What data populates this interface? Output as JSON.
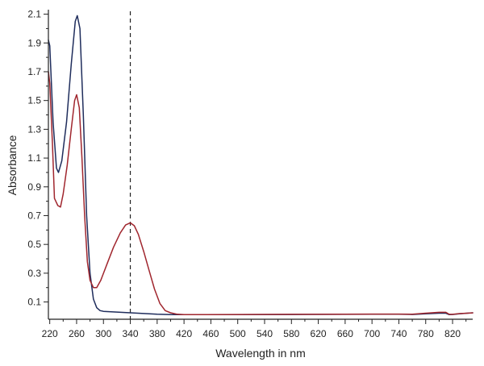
{
  "chart_data": {
    "type": "line",
    "title": "",
    "xlabel": "Wavelength in nm",
    "ylabel": "Absorbance",
    "xlim": [
      218,
      850
    ],
    "ylim": [
      -0.02,
      2.12
    ],
    "x_ticks": [
      220,
      260,
      300,
      340,
      380,
      420,
      460,
      500,
      540,
      580,
      620,
      660,
      700,
      740,
      780,
      820
    ],
    "y_ticks": [
      0.1,
      0.3,
      0.5,
      0.7,
      0.9,
      1.1,
      1.3,
      1.5,
      1.7,
      1.9,
      2.1
    ],
    "grid": false,
    "legend": "none",
    "vertical_marker_x": 340,
    "series": [
      {
        "color": "#1f2d5c",
        "points": [
          [
            218,
            1.92
          ],
          [
            220,
            1.88
          ],
          [
            225,
            1.35
          ],
          [
            230,
            1.03
          ],
          [
            233,
            1.0
          ],
          [
            238,
            1.08
          ],
          [
            245,
            1.35
          ],
          [
            252,
            1.75
          ],
          [
            258,
            2.05
          ],
          [
            261,
            2.09
          ],
          [
            265,
            2.0
          ],
          [
            270,
            1.4
          ],
          [
            275,
            0.7
          ],
          [
            280,
            0.3
          ],
          [
            285,
            0.12
          ],
          [
            290,
            0.06
          ],
          [
            295,
            0.04
          ],
          [
            300,
            0.035
          ],
          [
            320,
            0.03
          ],
          [
            340,
            0.025
          ],
          [
            360,
            0.02
          ],
          [
            380,
            0.015
          ],
          [
            400,
            0.012
          ],
          [
            420,
            0.012
          ],
          [
            500,
            0.012
          ],
          [
            580,
            0.013
          ],
          [
            660,
            0.014
          ],
          [
            700,
            0.015
          ],
          [
            740,
            0.015
          ],
          [
            760,
            0.013
          ],
          [
            780,
            0.018
          ],
          [
            800,
            0.022
          ],
          [
            810,
            0.022
          ],
          [
            815,
            0.012
          ],
          [
            820,
            0.013
          ],
          [
            830,
            0.018
          ],
          [
            850,
            0.025
          ]
        ]
      },
      {
        "color": "#a0262e",
        "points": [
          [
            218,
            1.7
          ],
          [
            220,
            1.62
          ],
          [
            224,
            1.2
          ],
          [
            227,
            0.82
          ],
          [
            232,
            0.77
          ],
          [
            236,
            0.76
          ],
          [
            240,
            0.85
          ],
          [
            246,
            1.05
          ],
          [
            252,
            1.3
          ],
          [
            257,
            1.5
          ],
          [
            260,
            1.54
          ],
          [
            264,
            1.45
          ],
          [
            268,
            1.1
          ],
          [
            272,
            0.7
          ],
          [
            276,
            0.38
          ],
          [
            280,
            0.25
          ],
          [
            285,
            0.2
          ],
          [
            290,
            0.2
          ],
          [
            296,
            0.25
          ],
          [
            305,
            0.36
          ],
          [
            315,
            0.48
          ],
          [
            325,
            0.58
          ],
          [
            333,
            0.635
          ],
          [
            340,
            0.65
          ],
          [
            346,
            0.63
          ],
          [
            352,
            0.57
          ],
          [
            360,
            0.45
          ],
          [
            368,
            0.32
          ],
          [
            376,
            0.19
          ],
          [
            384,
            0.09
          ],
          [
            392,
            0.04
          ],
          [
            400,
            0.025
          ],
          [
            410,
            0.015
          ],
          [
            420,
            0.012
          ],
          [
            500,
            0.013
          ],
          [
            580,
            0.014
          ],
          [
            660,
            0.015
          ],
          [
            700,
            0.016
          ],
          [
            740,
            0.016
          ],
          [
            760,
            0.015
          ],
          [
            780,
            0.022
          ],
          [
            800,
            0.028
          ],
          [
            810,
            0.028
          ],
          [
            815,
            0.014
          ],
          [
            820,
            0.014
          ],
          [
            830,
            0.019
          ],
          [
            850,
            0.024
          ]
        ]
      }
    ]
  }
}
